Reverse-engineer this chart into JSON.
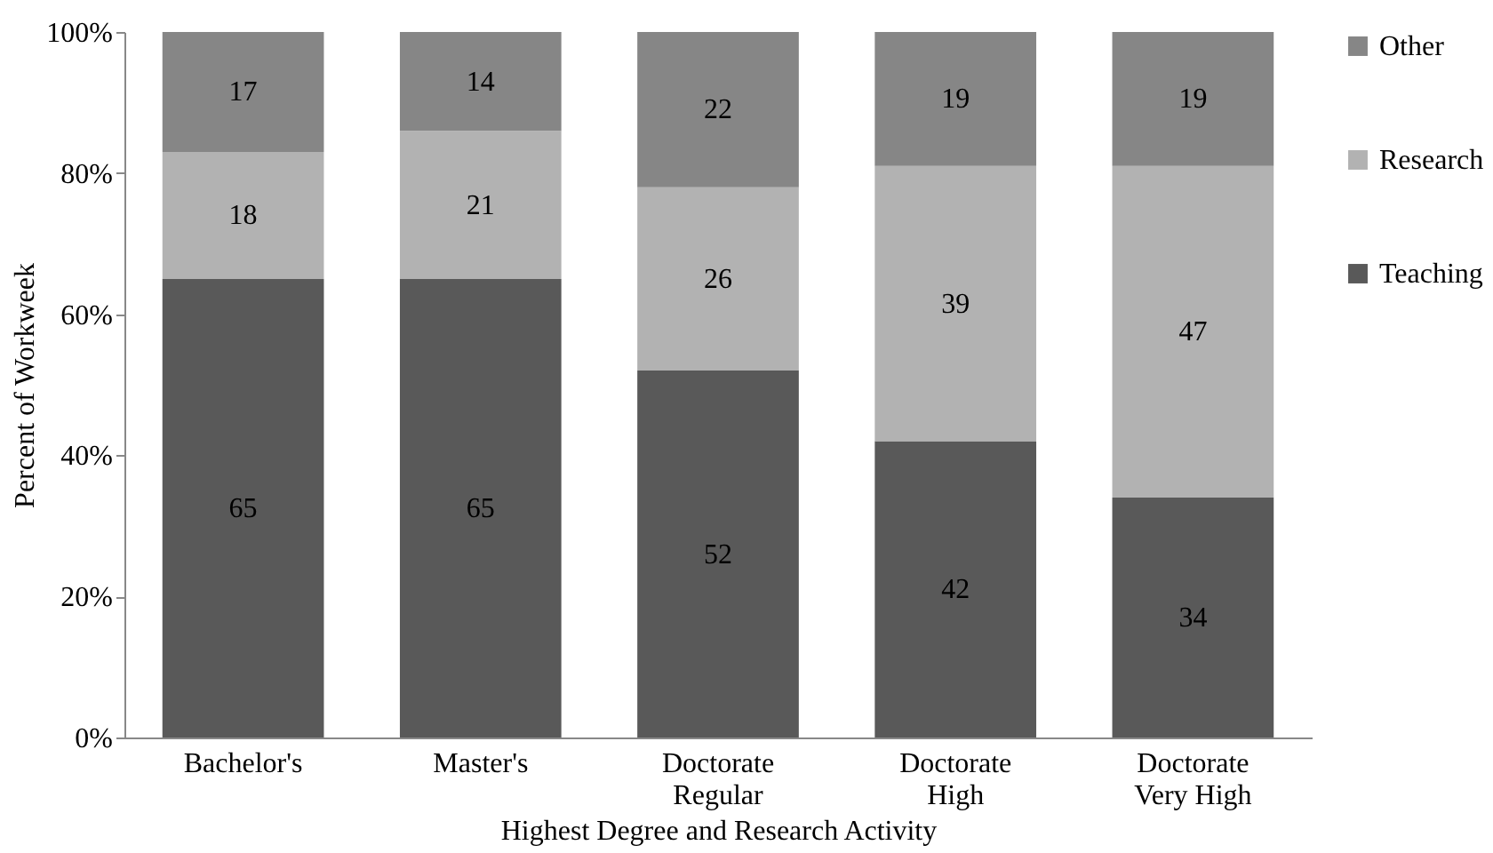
{
  "chart_data": {
    "type": "bar",
    "stacked": true,
    "xlabel": "Highest Degree and Research Activity",
    "ylabel": "Percent of Workweek",
    "categories": [
      "Bachelor's",
      "Master's",
      "Doctorate\nRegular",
      "Doctorate\nHigh",
      "Doctorate\nVery High"
    ],
    "series": [
      {
        "name": "Teaching",
        "color": "#595959",
        "values": [
          65,
          65,
          52,
          42,
          34
        ]
      },
      {
        "name": "Research",
        "color": "#b2b2b2",
        "values": [
          18,
          21,
          26,
          39,
          47
        ]
      },
      {
        "name": "Other",
        "color": "#868686",
        "values": [
          17,
          14,
          22,
          19,
          19
        ]
      }
    ],
    "ylim": [
      0,
      100
    ],
    "yticks": [
      {
        "value": 0,
        "label": "0%"
      },
      {
        "value": 20,
        "label": "20%"
      },
      {
        "value": 40,
        "label": "40%"
      },
      {
        "value": 60,
        "label": "60%"
      },
      {
        "value": 80,
        "label": "80%"
      },
      {
        "value": 100,
        "label": "100%"
      }
    ],
    "data_labels": true,
    "grid": false,
    "legend": "right"
  }
}
